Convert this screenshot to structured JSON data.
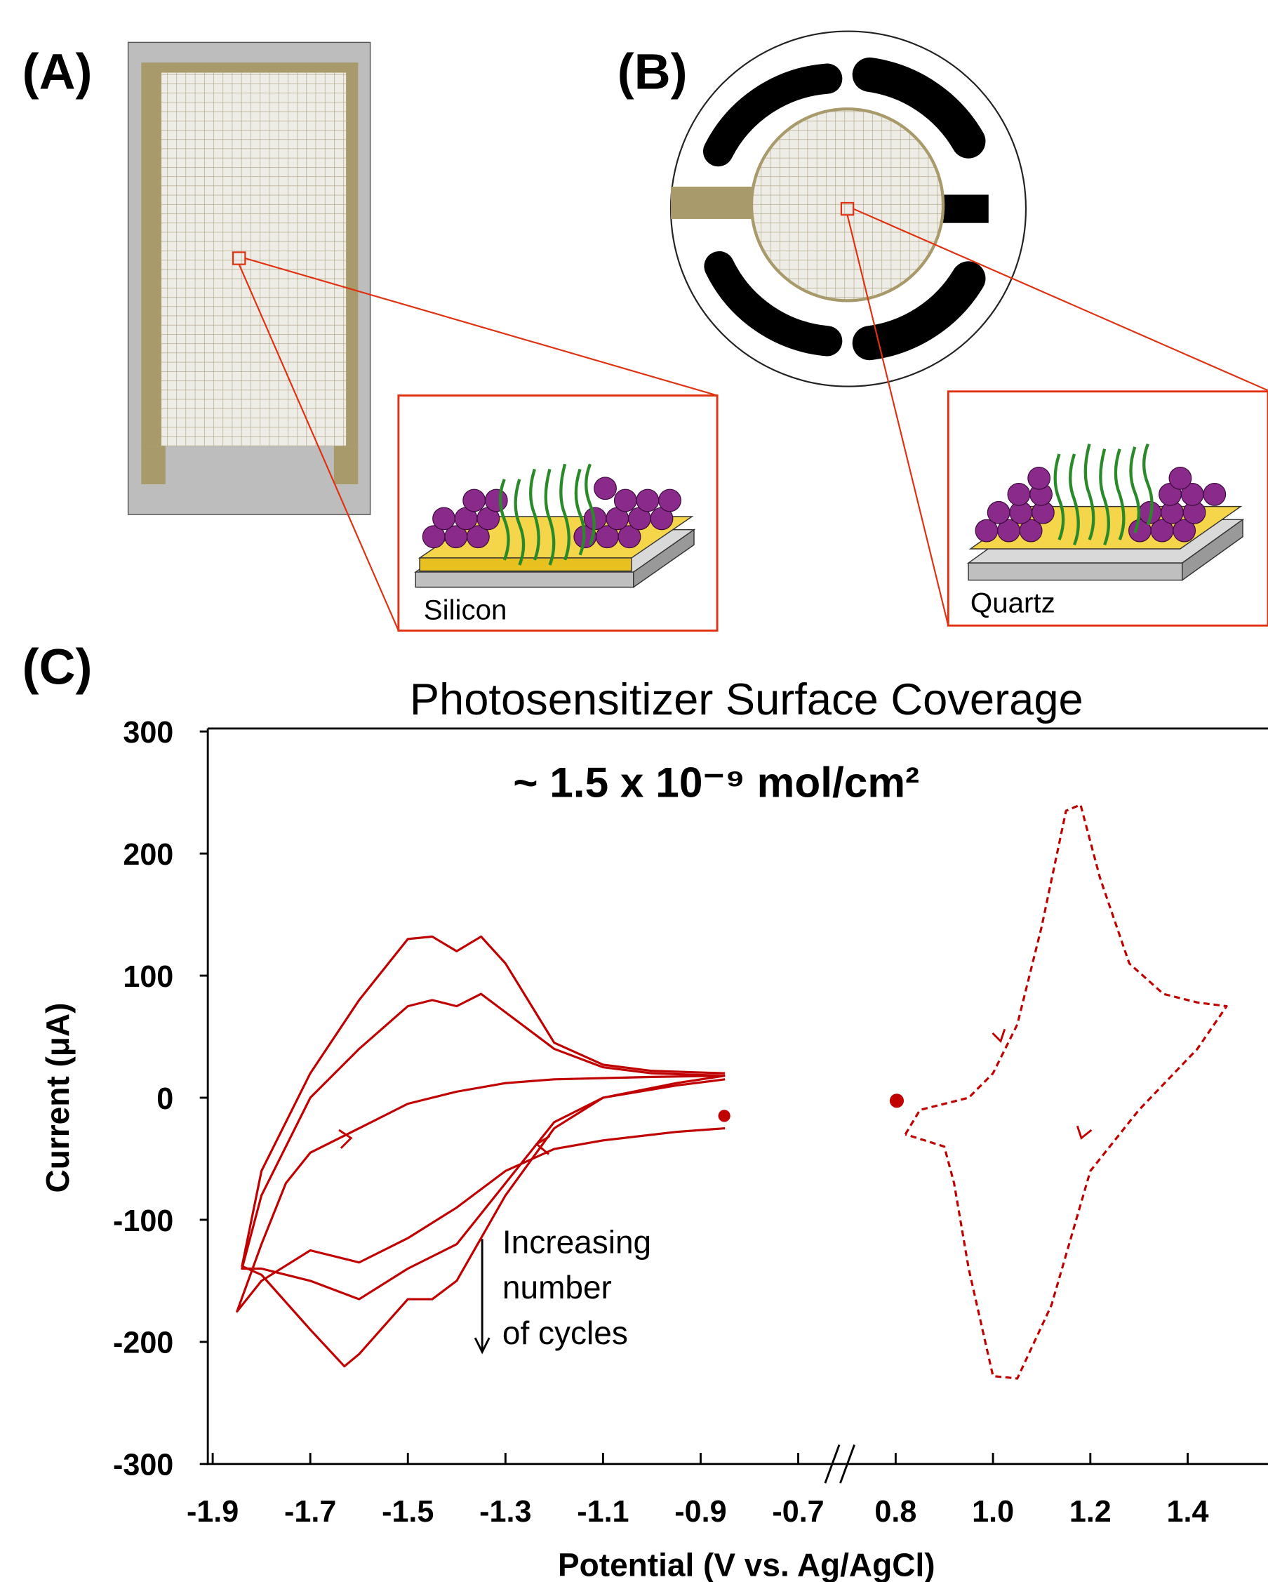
{
  "panel_labels": {
    "a": "(A)",
    "b": "(B)",
    "c": "(C)"
  },
  "insets": {
    "a": "Silicon",
    "b": "Quartz"
  },
  "chart_data": {
    "type": "line",
    "title": "Photosensitizer Surface Coverage",
    "annotation": "~ 1.5 x 10⁻⁹ mol/cm²",
    "note_lines": [
      "Increasing",
      "number",
      "of cycles"
    ],
    "xlabel": "Potential (V vs. Ag/AgCl)",
    "ylabel": "Current (μA)",
    "ylim": [
      -300,
      300
    ],
    "yticks": [
      300,
      200,
      100,
      0,
      -100,
      -200,
      -300
    ],
    "x_segments": [
      {
        "xlim": [
          -1.91,
          -0.62
        ],
        "xticks": [
          -1.9,
          -1.7,
          -1.5,
          -1.3,
          -1.1,
          -0.9,
          -0.7
        ]
      },
      {
        "xlim": [
          0.68,
          1.565
        ],
        "xticks": [
          0.8,
          {
            "value": 1,
            "label": "1.0"
          },
          1.2,
          1.4
        ]
      }
    ],
    "series": [
      {
        "segment": 0,
        "color": "#c00000",
        "dashed": false,
        "x": [
          -0.85,
          -0.95,
          -1.1,
          -1.2,
          -1.3,
          -1.4,
          -1.5,
          -1.6,
          -1.7,
          -1.8,
          -1.85,
          -1.8,
          -1.75,
          -1.7,
          -1.6,
          -1.5,
          -1.4,
          -1.3,
          -1.2,
          -1.0,
          -0.85
        ],
        "values": [
          -25,
          -28,
          -35,
          -42,
          -60,
          -90,
          -115,
          -135,
          -125,
          -150,
          -175,
          -120,
          -70,
          -45,
          -25,
          -5,
          5,
          12,
          15,
          17,
          18
        ]
      },
      {
        "segment": 0,
        "color": "#c00000",
        "dashed": false,
        "x": [
          -0.85,
          -0.95,
          -1.1,
          -1.2,
          -1.3,
          -1.4,
          -1.5,
          -1.6,
          -1.7,
          -1.8,
          -1.84,
          -1.8,
          -1.7,
          -1.6,
          -1.5,
          -1.45,
          -1.4,
          -1.35,
          -1.3,
          -1.2,
          -1.1,
          -1.0,
          -0.85
        ],
        "values": [
          15,
          10,
          0,
          -20,
          -70,
          -120,
          -140,
          -165,
          -150,
          -140,
          -140,
          -80,
          0,
          40,
          75,
          80,
          75,
          85,
          70,
          40,
          25,
          20,
          18
        ]
      },
      {
        "segment": 0,
        "color": "#c00000",
        "dashed": false,
        "x": [
          -0.85,
          -0.95,
          -1.1,
          -1.2,
          -1.3,
          -1.4,
          -1.45,
          -1.5,
          -1.6,
          -1.63,
          -1.7,
          -1.8,
          -1.84,
          -1.8,
          -1.7,
          -1.6,
          -1.5,
          -1.45,
          -1.4,
          -1.35,
          -1.3,
          -1.2,
          -1.1,
          -1.0,
          -0.85
        ],
        "values": [
          18,
          12,
          0,
          -25,
          -80,
          -150,
          -165,
          -165,
          -210,
          -220,
          -190,
          -145,
          -138,
          -60,
          20,
          80,
          130,
          132,
          120,
          132,
          110,
          45,
          27,
          22,
          20
        ]
      },
      {
        "segment": 1,
        "color": "#c00000",
        "dashed": true,
        "x": [
          0.82,
          0.85,
          0.95,
          1.0,
          1.05,
          1.1,
          1.15,
          1.18,
          1.22,
          1.28,
          1.35,
          1.42,
          1.48,
          1.42,
          1.3,
          1.2,
          1.12,
          1.05,
          1.0,
          0.95,
          0.92,
          0.9,
          0.82
        ],
        "values": [
          -30,
          -10,
          0,
          20,
          60,
          140,
          235,
          240,
          180,
          110,
          85,
          78,
          75,
          40,
          -10,
          -60,
          -170,
          -230,
          -228,
          -140,
          -70,
          -40,
          -30
        ]
      }
    ]
  }
}
